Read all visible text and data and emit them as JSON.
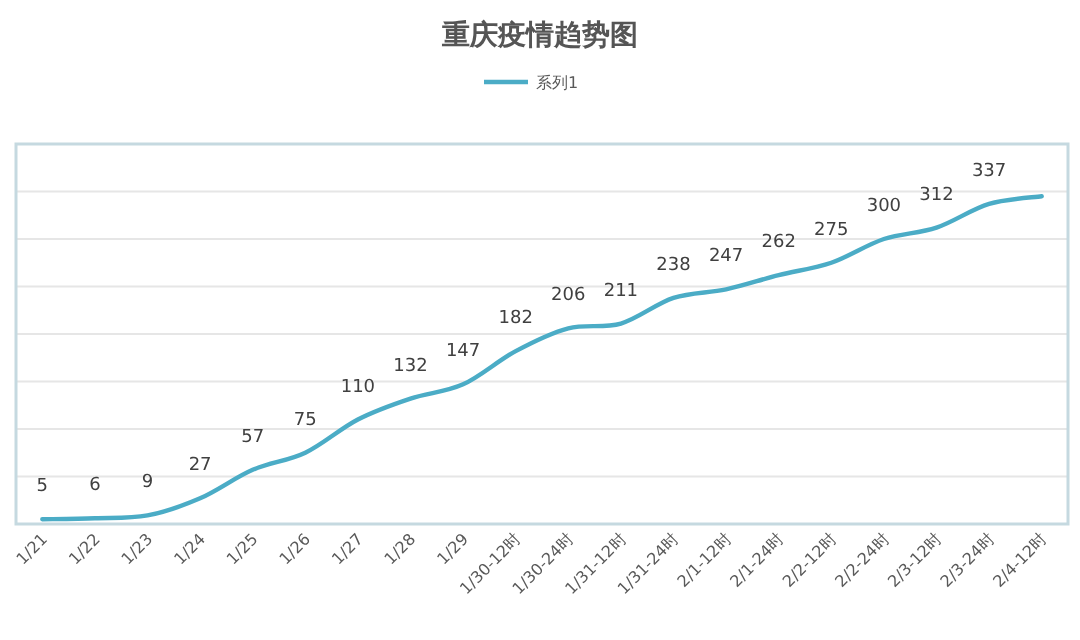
{
  "chart_data": {
    "type": "line",
    "title": "重庆疫情趋势图",
    "categories": [
      "1/21",
      "1/22",
      "1/23",
      "1/24",
      "1/25",
      "1/26",
      "1/27",
      "1/28",
      "1/29",
      "1/30-12时",
      "1/30-24时",
      "1/31-12时",
      "1/31-24时",
      "2/1-12时",
      "2/1-24时",
      "2/2-12时",
      "2/2-24时",
      "2/3-12时",
      "2/3-24时",
      "2/4-12时"
    ],
    "series": [
      {
        "name": "系列1",
        "color": "#4bacc6",
        "values": [
          5,
          6,
          9,
          27,
          57,
          75,
          110,
          132,
          147,
          182,
          206,
          211,
          238,
          247,
          262,
          275,
          300,
          312,
          337,
          345
        ],
        "value_labels": [
          "5",
          "6",
          "9",
          "27",
          "57",
          "75",
          "110",
          "132",
          "147",
          "182",
          "206",
          "211",
          "238",
          "247",
          "262",
          "275",
          "300",
          "312",
          "337",
          null
        ]
      }
    ],
    "ylim": [
      0,
      400
    ],
    "yticks": [
      {
        "value": 0,
        "label": null
      },
      {
        "value": 50,
        "label": null
      },
      {
        "value": 100,
        "label": null
      },
      {
        "value": 150,
        "label": null
      },
      {
        "value": 200,
        "label": null
      },
      {
        "value": 250,
        "label": null
      },
      {
        "value": 300,
        "label": null
      },
      {
        "value": 350,
        "label": null
      },
      {
        "value": 400,
        "label": null
      }
    ],
    "tick_labels": "x",
    "grid": "y",
    "legend": "top",
    "marker": "none",
    "line_style": "solid"
  }
}
